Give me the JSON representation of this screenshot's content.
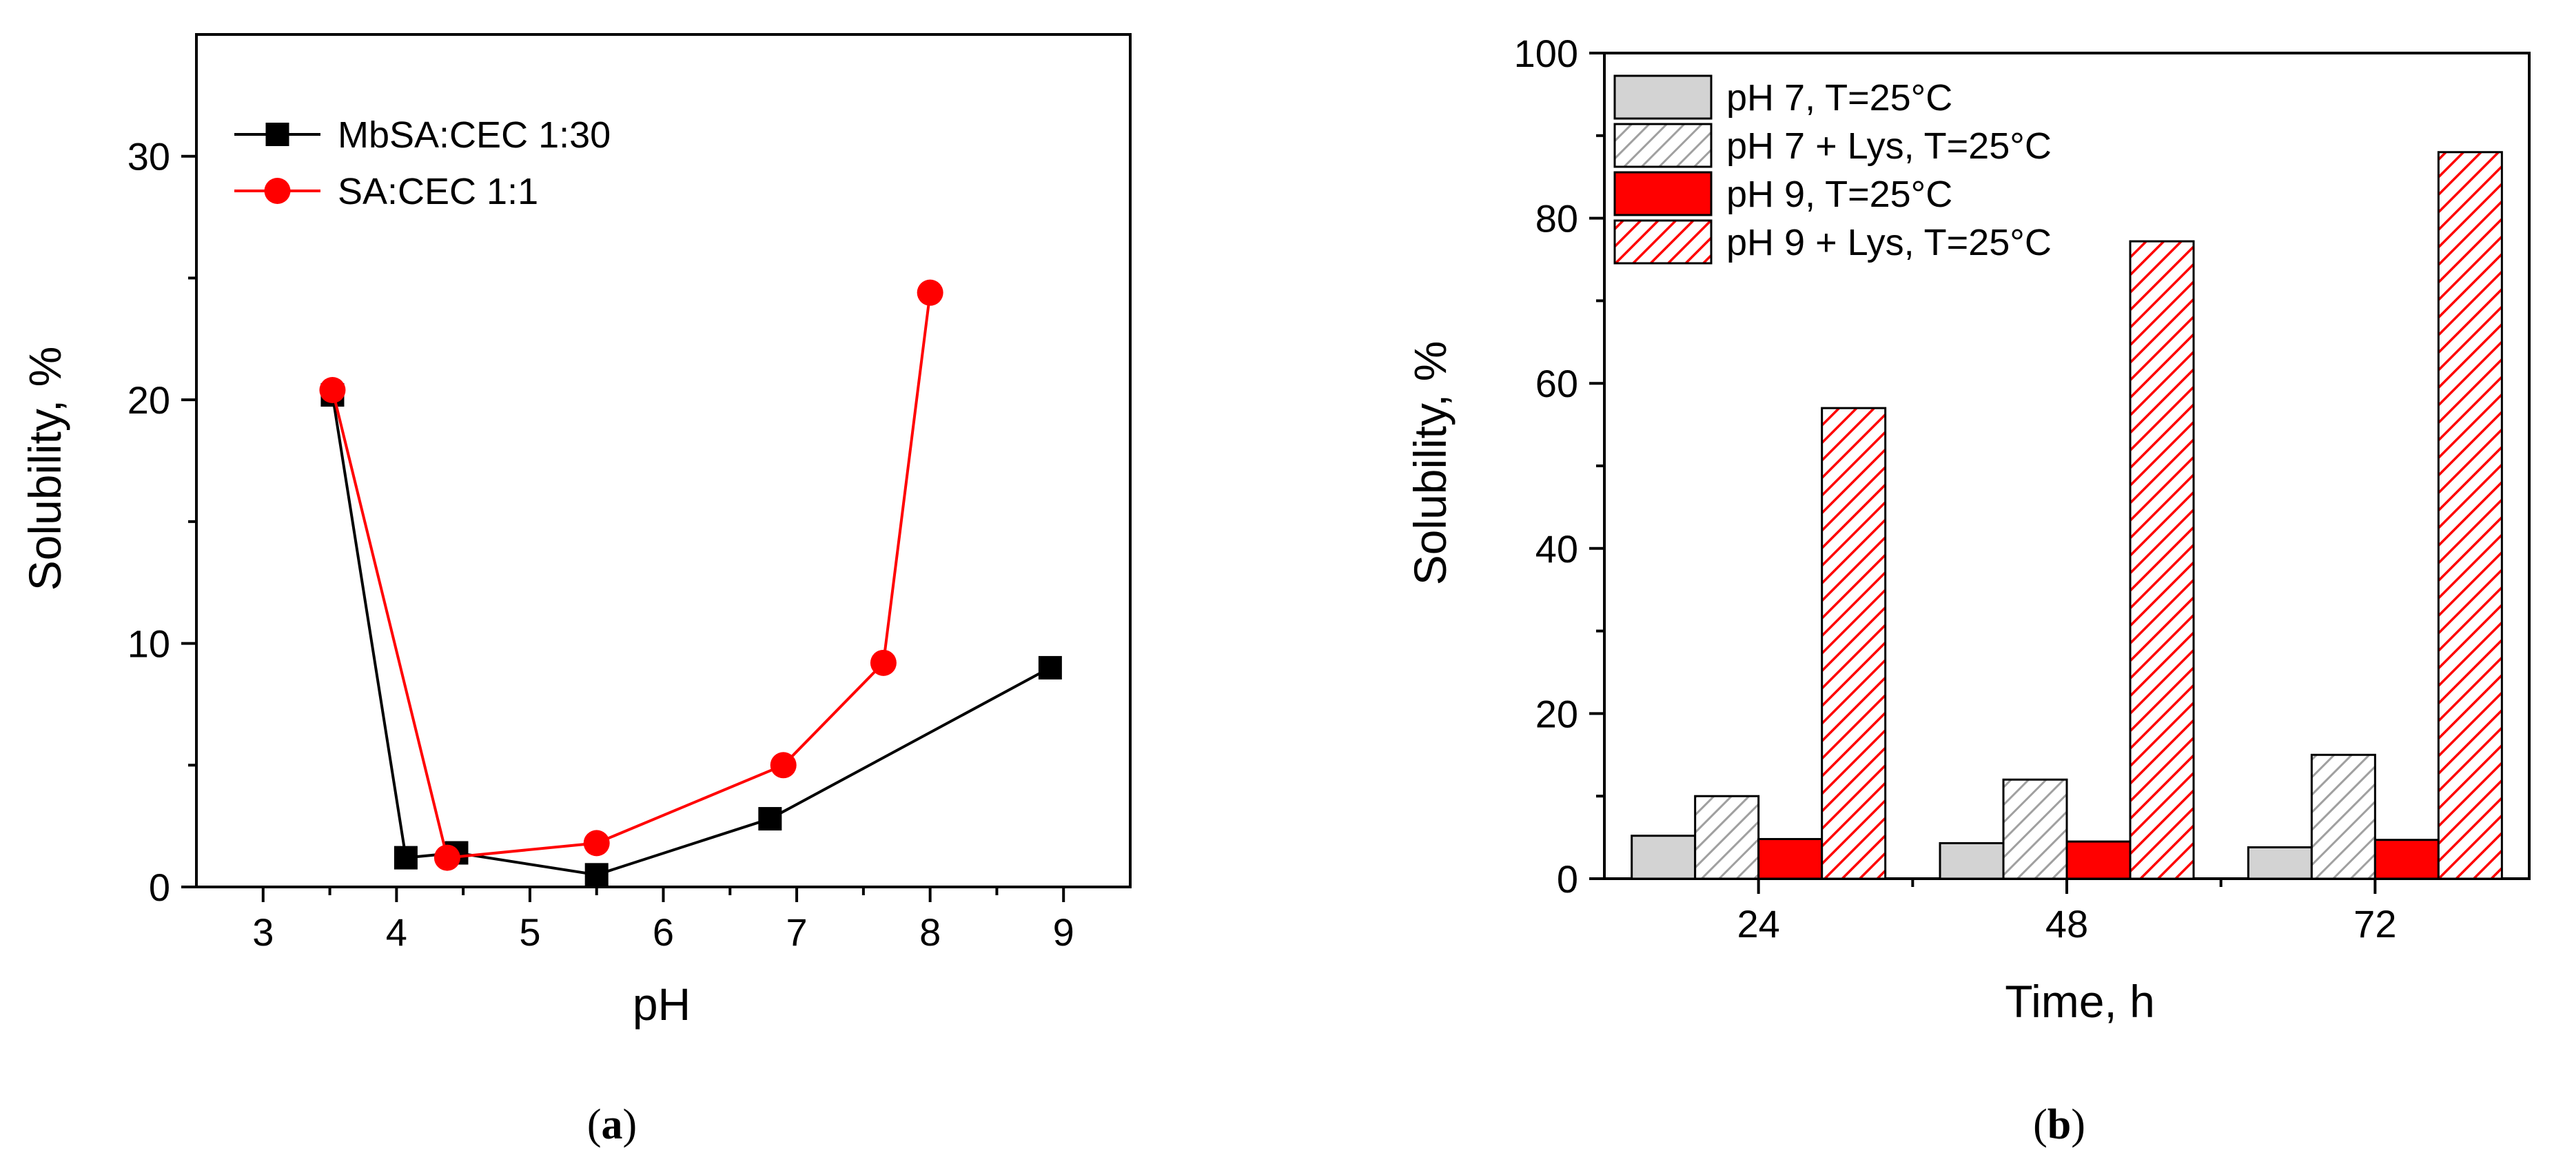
{
  "chart_data": [
    {
      "type": "line",
      "panel_label": "a",
      "caption_open": "(",
      "caption_close": ")",
      "xlabel": "pH",
      "ylabel": "Solubility, %",
      "xlim": [
        2.5,
        9.5
      ],
      "ylim": [
        0,
        35
      ],
      "xticks": [
        "3",
        "4",
        "5",
        "6",
        "7",
        "8",
        "9"
      ],
      "yticks": [
        "0",
        "10",
        "20",
        "30"
      ],
      "legend_position": "top-left",
      "series": [
        {
          "name": "MbSA:CEC 1:30",
          "color": "#000000",
          "marker": "square",
          "x": [
            3.52,
            4.07,
            4.45,
            5.5,
            6.8,
            8.9
          ],
          "y": [
            20.2,
            1.2,
            1.4,
            0.5,
            2.8,
            9.0
          ]
        },
        {
          "name": "SA:CEC 1:1",
          "color": "#ff0000",
          "marker": "circle",
          "x": [
            3.52,
            4.38,
            5.5,
            6.9,
            7.65,
            8.0
          ],
          "y": [
            20.4,
            1.2,
            1.8,
            5.0,
            9.2,
            24.4
          ]
        }
      ]
    },
    {
      "type": "bar",
      "panel_label": "b",
      "caption_open": "(",
      "caption_close": ")",
      "xlabel": "Time, h",
      "ylabel": "Solubility, %",
      "ylim": [
        0,
        100
      ],
      "yticks": [
        "0",
        "20",
        "40",
        "60",
        "80",
        "100"
      ],
      "categories": [
        "24",
        "48",
        "72"
      ],
      "legend_position": "top-left",
      "series": [
        {
          "name": "pH 7, T=25°C",
          "fill": "#d3d3d3",
          "pattern": "solid",
          "values": [
            5.2,
            4.3,
            3.8
          ]
        },
        {
          "name": "pH 7 + Lys, T=25°C",
          "fill": "#a0a0a0",
          "pattern": "hatch",
          "values": [
            10.0,
            12.0,
            15.0
          ]
        },
        {
          "name": "pH 9, T=25°C",
          "fill": "#ff0000",
          "pattern": "solid",
          "values": [
            4.8,
            4.5,
            4.7
          ]
        },
        {
          "name": "pH 9 + Lys, T=25°C",
          "fill": "#ff0000",
          "pattern": "hatch",
          "values": [
            57.0,
            77.2,
            88.0
          ]
        }
      ]
    }
  ]
}
